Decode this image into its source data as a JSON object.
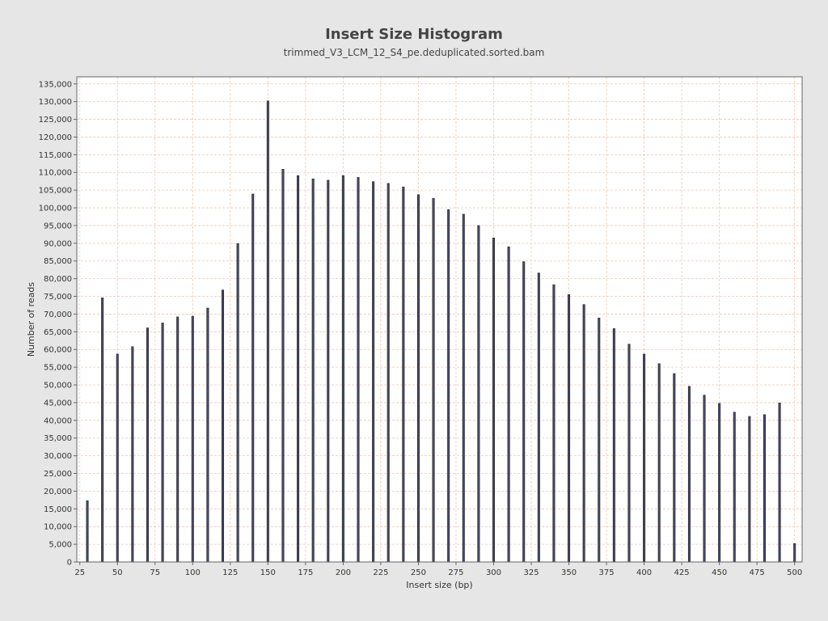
{
  "chart_data": {
    "type": "bar",
    "title": "Insert Size Histogram",
    "subtitle": "trimmed_V3_LCM_12_S4_pe.deduplicated.sorted.bam",
    "xlabel": "Insert size (bp)",
    "ylabel": "Number of reads",
    "xlim": [
      23,
      505
    ],
    "ylim": [
      0,
      137000
    ],
    "x_ticks": [
      25,
      50,
      75,
      100,
      125,
      150,
      175,
      200,
      225,
      250,
      275,
      300,
      325,
      350,
      375,
      400,
      425,
      450,
      475,
      500
    ],
    "y_ticks": [
      0,
      5000,
      10000,
      15000,
      20000,
      25000,
      30000,
      35000,
      40000,
      45000,
      50000,
      55000,
      60000,
      65000,
      70000,
      75000,
      80000,
      85000,
      90000,
      95000,
      100000,
      105000,
      110000,
      115000,
      120000,
      125000,
      130000,
      135000
    ],
    "y_tick_labels": [
      "0",
      "5,000",
      "10,000",
      "15,000",
      "20,000",
      "25,000",
      "30,000",
      "35,000",
      "40,000",
      "45,000",
      "50,000",
      "55,000",
      "60,000",
      "65,000",
      "70,000",
      "75,000",
      "80,000",
      "85,000",
      "90,000",
      "95,000",
      "100,000",
      "105,000",
      "110,000",
      "115,000",
      "120,000",
      "125,000",
      "130,000",
      "135,000"
    ],
    "grid": true,
    "x": [
      30,
      40,
      50,
      60,
      70,
      80,
      90,
      100,
      110,
      120,
      130,
      140,
      150,
      160,
      170,
      180,
      190,
      200,
      210,
      220,
      230,
      240,
      250,
      260,
      270,
      280,
      290,
      300,
      310,
      320,
      330,
      340,
      350,
      360,
      370,
      380,
      390,
      400,
      410,
      420,
      430,
      440,
      450,
      460,
      470,
      480,
      490,
      500
    ],
    "values": [
      17300,
      74600,
      58700,
      60800,
      66100,
      67500,
      69200,
      69400,
      71700,
      76800,
      89900,
      103900,
      130200,
      110900,
      109100,
      108200,
      107800,
      109100,
      108600,
      107400,
      106900,
      105900,
      103700,
      102700,
      99500,
      98200,
      95000,
      91500,
      89000,
      84800,
      81600,
      78300,
      75500,
      72700,
      68900,
      65900,
      61500,
      58700,
      56000,
      53200,
      49600,
      47100,
      44800,
      42300,
      41100,
      41600,
      44900,
      5200
    ],
    "colors": {
      "background": "#e6e6e6",
      "plot_background": "#ffffff",
      "grid": "#f0c8b0",
      "bar_fill": "#4a4a66",
      "bar_stroke": "#1e1e28",
      "text": "#444444"
    }
  }
}
